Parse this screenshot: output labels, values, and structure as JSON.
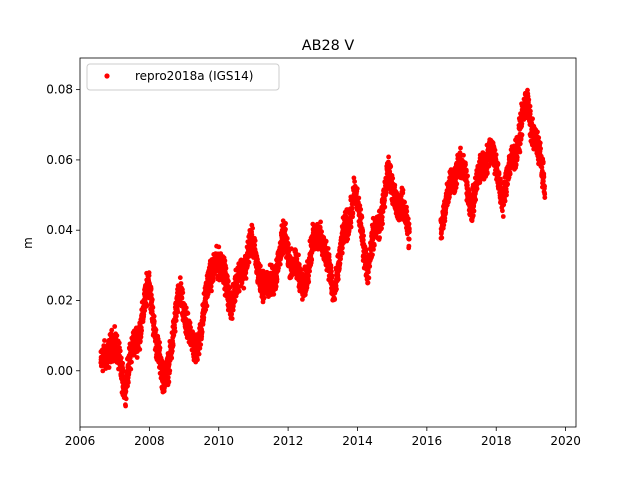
{
  "chart_data": {
    "type": "scatter",
    "title": "AB28 V",
    "xlabel": "",
    "ylabel": "m",
    "xlim": [
      2006.0,
      2020.3
    ],
    "ylim": [
      -0.016,
      0.089
    ],
    "xticks": [
      2006,
      2008,
      2010,
      2012,
      2014,
      2016,
      2018,
      2020
    ],
    "xtick_labels": [
      "2006",
      "2008",
      "2010",
      "2012",
      "2014",
      "2016",
      "2018",
      "2020"
    ],
    "yticks": [
      0.0,
      0.02,
      0.04,
      0.06,
      0.08
    ],
    "ytick_labels": [
      "0.00",
      "0.02",
      "0.04",
      "0.06",
      "0.08"
    ],
    "grid": false,
    "legend_position": "top-left",
    "series": [
      {
        "name": "repro2018a (IGS14)",
        "color": "#ff0000",
        "marker": "circle",
        "trend": [
          [
            2006.6,
            0.002
          ],
          [
            2019.4,
            0.062
          ]
        ],
        "seasonal_amplitude": 0.007,
        "noise": 0.004,
        "gap": [
          2015.5,
          2016.4
        ],
        "anchors": [
          [
            2006.6,
            0.0
          ],
          [
            2006.9,
            0.009
          ],
          [
            2007.3,
            -0.003
          ],
          [
            2007.7,
            0.012
          ],
          [
            2008.0,
            0.024
          ],
          [
            2008.4,
            -0.005
          ],
          [
            2008.9,
            0.022
          ],
          [
            2009.3,
            0.004
          ],
          [
            2009.9,
            0.033
          ],
          [
            2010.4,
            0.02
          ],
          [
            2010.9,
            0.036
          ],
          [
            2011.4,
            0.022
          ],
          [
            2011.9,
            0.037
          ],
          [
            2012.4,
            0.024
          ],
          [
            2012.9,
            0.041
          ],
          [
            2013.3,
            0.023
          ],
          [
            2013.9,
            0.051
          ],
          [
            2014.3,
            0.03
          ],
          [
            2014.9,
            0.055
          ],
          [
            2015.5,
            0.04
          ],
          [
            2016.4,
            0.042
          ],
          [
            2016.9,
            0.06
          ],
          [
            2017.3,
            0.048
          ],
          [
            2017.8,
            0.064
          ],
          [
            2018.2,
            0.05
          ],
          [
            2018.9,
            0.076
          ],
          [
            2019.4,
            0.053
          ]
        ]
      }
    ]
  }
}
